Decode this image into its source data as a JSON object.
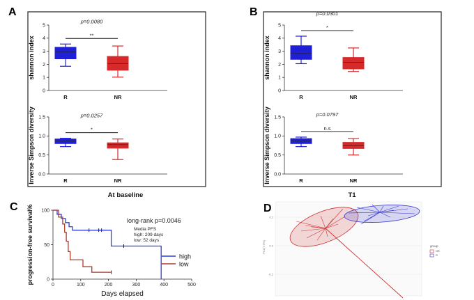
{
  "chart_data": [
    {
      "panel": "A",
      "type": "box",
      "footer": "At baseline",
      "subplots": [
        {
          "ylabel": "shannon index",
          "categories": [
            "R",
            "NR"
          ],
          "ylim": [
            0,
            5
          ],
          "yticks": [
            0,
            1,
            2,
            3,
            4,
            5
          ],
          "p_value": "p=0.0080",
          "significance": "**",
          "boxes": [
            {
              "name": "R",
              "color": "#1f1fd8",
              "min": 1.85,
              "q1": 2.42,
              "median": 2.95,
              "q3": 3.3,
              "max": 3.55
            },
            {
              "name": "NR",
              "color": "#d62a2a",
              "min": 1.02,
              "q1": 1.55,
              "median": 2.05,
              "q3": 2.6,
              "max": 3.4
            }
          ]
        },
        {
          "ylabel": "Inverse Simpson diversity",
          "categories": [
            "R",
            "NR"
          ],
          "ylim": [
            0,
            1.5
          ],
          "yticks": [
            "0.0",
            "0.5",
            "1.0",
            "1.5"
          ],
          "p_value": "p=0.0257",
          "significance": "*",
          "boxes": [
            {
              "name": "R",
              "color": "#1f1fd8",
              "min": 0.72,
              "q1": 0.8,
              "median": 0.87,
              "q3": 0.92,
              "max": 0.94
            },
            {
              "name": "NR",
              "color": "#d62a2a",
              "min": 0.38,
              "q1": 0.68,
              "median": 0.77,
              "q3": 0.82,
              "max": 0.92
            }
          ]
        }
      ]
    },
    {
      "panel": "B",
      "type": "box",
      "footer": "T1",
      "subplots": [
        {
          "ylabel": "shannon index",
          "categories": [
            "R",
            "NR"
          ],
          "ylim": [
            0,
            5
          ],
          "yticks": [
            0,
            1,
            2,
            3,
            4,
            5
          ],
          "p_value": "p=0.0301",
          "significance": "*",
          "boxes": [
            {
              "name": "R",
              "color": "#1f1fd8",
              "min": 2.05,
              "q1": 2.38,
              "median": 2.85,
              "q3": 3.42,
              "max": 4.15
            },
            {
              "name": "NR",
              "color": "#d62a2a",
              "min": 1.45,
              "q1": 1.65,
              "median": 2.15,
              "q3": 2.52,
              "max": 3.25
            }
          ]
        },
        {
          "ylabel": "Inverse Simpson diversity",
          "categories": [
            "R",
            "NR"
          ],
          "ylim": [
            0,
            1.5
          ],
          "yticks": [
            "0.0",
            "0.5",
            "1.0",
            "1.5"
          ],
          "p_value": "p=0.0797",
          "significance": "n.s",
          "boxes": [
            {
              "name": "R",
              "color": "#1f1fd8",
              "min": 0.72,
              "q1": 0.8,
              "median": 0.87,
              "q3": 0.93,
              "max": 0.97
            },
            {
              "name": "NR",
              "color": "#d62a2a",
              "min": 0.5,
              "q1": 0.67,
              "median": 0.75,
              "q3": 0.83,
              "max": 0.93
            }
          ]
        }
      ]
    },
    {
      "panel": "C",
      "type": "line",
      "subtype": "kaplan-meier",
      "ylabel": "progression-free survival%",
      "xlabel": "Days elapsed",
      "xlim": [
        0,
        500
      ],
      "ylim": [
        0,
        100
      ],
      "xticks": [
        0,
        100,
        200,
        300,
        400,
        500
      ],
      "yticks": [
        0,
        50,
        100
      ],
      "annotation": "long-rank p=0.0046",
      "annotation_lines": [
        "Media PFS",
        "high: 209 days",
        "low: 52 days"
      ],
      "series": [
        {
          "name": "high",
          "color": "#2b3fd6",
          "x": [
            0,
            15,
            30,
            45,
            58,
            70,
            210,
            390,
            390
          ],
          "y": [
            100,
            94,
            88,
            82,
            76,
            71,
            48,
            48,
            0
          ],
          "censored": [
            [
              130,
              71
            ],
            [
              165,
              71
            ],
            [
              175,
              71
            ],
            [
              255,
              48
            ]
          ]
        },
        {
          "name": "low",
          "color": "#b03a2a",
          "x": [
            0,
            20,
            35,
            42,
            48,
            55,
            62,
            80,
            108,
            140,
            210
          ],
          "y": [
            100,
            90,
            80,
            68,
            55,
            40,
            28,
            28,
            18,
            10,
            10
          ],
          "censored": [
            [
              210,
              10
            ]
          ]
        }
      ]
    },
    {
      "panel": "D",
      "type": "scatter",
      "subtype": "pca-biplot",
      "ylabel": "PC2(7.9%)",
      "yticks": [
        "0.2",
        "0.0",
        "-0.2",
        "-0.4"
      ],
      "legend_title": "group",
      "series": [
        {
          "name": "NR",
          "color": "#cc3333"
        },
        {
          "name": "R",
          "color": "#3333cc"
        }
      ]
    }
  ]
}
